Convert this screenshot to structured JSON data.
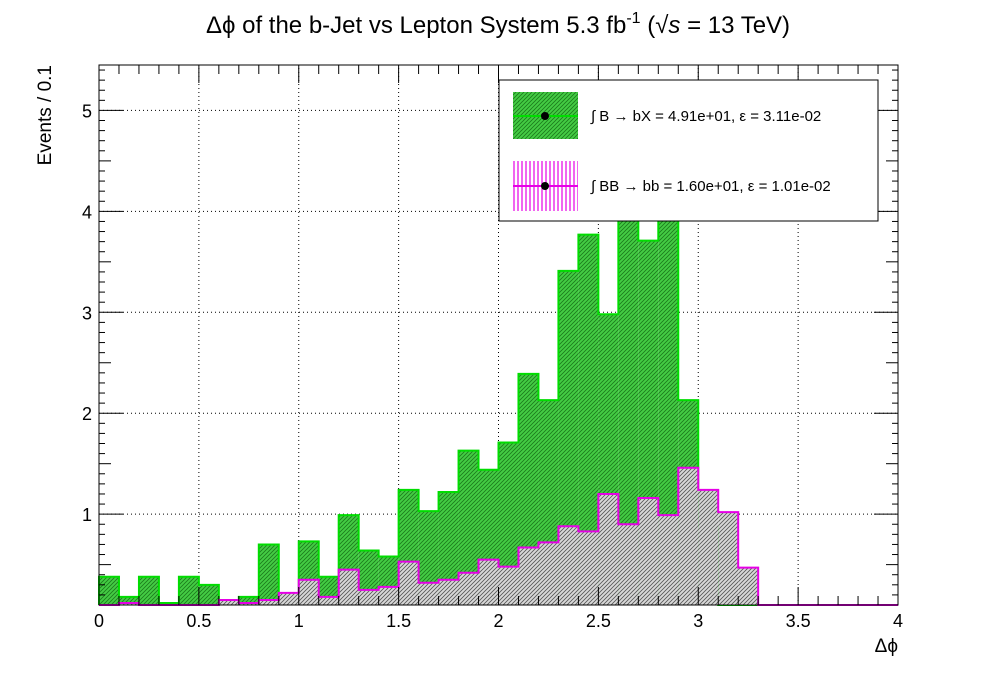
{
  "chart_data": {
    "type": "histogram",
    "title": {
      "delta": "Δϕ",
      "main": " of the b-Jet vs Lepton System 5.3 fb",
      "exponent": "-1",
      "energy_open": " (",
      "sqrt": "√",
      "s": "s",
      "energy_close": " = 13 TeV)"
    },
    "xlabel": "Δϕ",
    "ylabel": "Events / 0.1",
    "xlim": [
      0,
      4
    ],
    "ylim": [
      0.1,
      5.45
    ],
    "x_ticks": [
      "0",
      "0.5",
      "1",
      "1.5",
      "2",
      "2.5",
      "3",
      "3.5",
      "4"
    ],
    "y_ticks": [
      "1",
      "2",
      "3",
      "4",
      "5"
    ],
    "grid": true,
    "legend_position": "top-right",
    "bin_edges_start": 0,
    "bin_width": 0.1,
    "series": [
      {
        "name": "∫ B → bX = 4.91e+01, ε = 3.11e-02",
        "color": "#00dd00",
        "fill": "hatched green",
        "values": [
          0.38,
          0.18,
          0.38,
          0.12,
          0.38,
          0.3,
          0.12,
          0.18,
          0.7,
          0.12,
          0.73,
          0.38,
          0.99,
          0.64,
          0.58,
          1.24,
          1.03,
          1.22,
          1.63,
          1.44,
          1.71,
          2.39,
          2.13,
          3.41,
          3.77,
          2.98,
          4.52,
          3.71,
          4.36,
          2.13,
          0.87,
          0,
          0,
          0,
          0,
          0,
          0,
          0,
          0,
          0
        ]
      },
      {
        "name": "∫ BB → bb = 1.60e+01, ε = 1.01e-02",
        "color": "#e600e6",
        "fill": "grey hatched",
        "values": [
          0.05,
          0.12,
          0.05,
          0.05,
          0.05,
          0.05,
          0.15,
          0.12,
          0.15,
          0.22,
          0.35,
          0.18,
          0.45,
          0.25,
          0.28,
          0.53,
          0.32,
          0.35,
          0.42,
          0.55,
          0.48,
          0.67,
          0.72,
          0.88,
          0.83,
          1.2,
          0.9,
          1.16,
          0.99,
          1.46,
          1.24,
          1.02,
          0.47,
          0,
          0,
          0,
          0,
          0,
          0,
          0
        ]
      }
    ]
  }
}
